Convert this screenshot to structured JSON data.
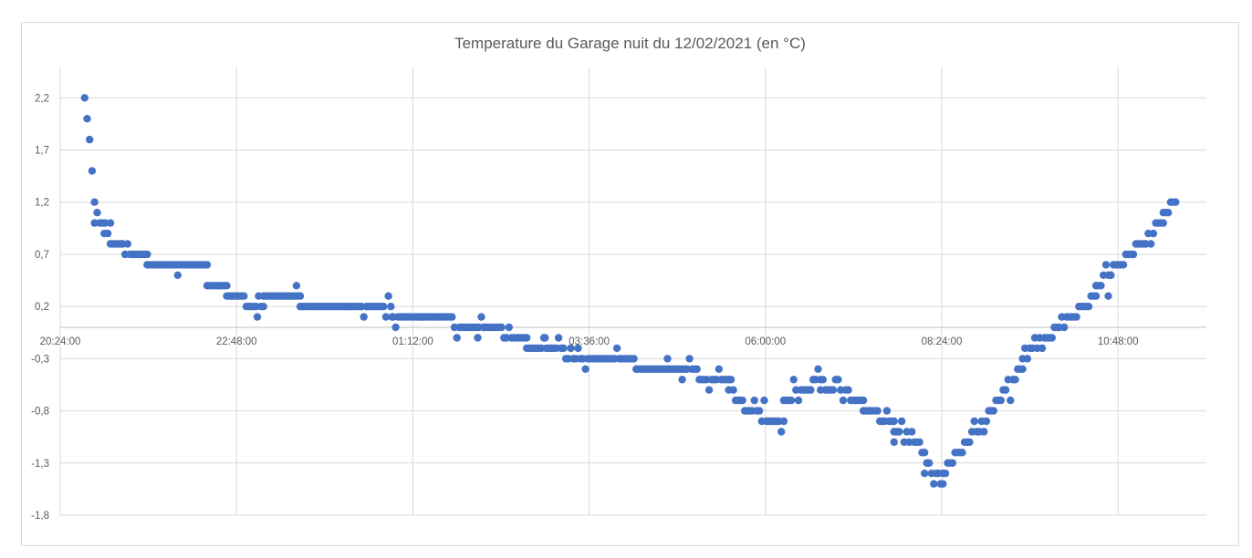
{
  "chart_data": {
    "type": "scatter",
    "title": "Temperature du Garage nuit du 12/02/2021 (en °C)",
    "xlabel": "",
    "ylabel": "",
    "x_unit": "time (hours since 20:24:00)",
    "xlim": [
      "20:24:00",
      "13:12:00"
    ],
    "ylim": [
      -1.8,
      2.5
    ],
    "x_tick_labels": [
      "20:24:00",
      "22:48:00",
      "01:12:00",
      "03:36:00",
      "06:00:00",
      "08:24:00",
      "10:48:00"
    ],
    "y_tick_labels": [
      "2,2",
      "1,7",
      "1,2",
      "0,7",
      "0,2",
      "-0,3",
      "-0,8",
      "-1,3",
      "-1,8"
    ],
    "y_tick_values": [
      2.2,
      1.7,
      1.2,
      0.7,
      0.2,
      -0.3,
      -0.8,
      -1.3,
      -1.8
    ],
    "grid": true,
    "legend": "none",
    "series_color": "#4472c4",
    "segments": [
      {
        "start": "20:44",
        "end": "20:52",
        "from": 2.2,
        "to": 1.2
      },
      {
        "start": "20:52",
        "end": "21:05",
        "from": 1.1,
        "to": 0.9
      },
      {
        "start": "21:05",
        "end": "21:35",
        "from": 0.8,
        "to": 0.7
      },
      {
        "start": "21:35",
        "end": "22:24",
        "from": 0.6,
        "to": 0.6
      },
      {
        "start": "22:24",
        "end": "22:40",
        "from": 0.4,
        "to": 0.4
      },
      {
        "start": "22:40",
        "end": "23:10",
        "from": 0.3,
        "to": 0.2
      },
      {
        "start": "23:10",
        "end": "23:40",
        "from": 0.3,
        "to": 0.3
      },
      {
        "start": "23:40",
        "end": "00:30",
        "from": 0.2,
        "to": 0.2
      },
      {
        "start": "00:30",
        "end": "01:20",
        "from": 0.2,
        "to": 0.1
      },
      {
        "start": "01:20",
        "end": "02:10",
        "from": 0.1,
        "to": 0.0
      },
      {
        "start": "02:10",
        "end": "02:45",
        "from": 0.0,
        "to": -0.1
      },
      {
        "start": "02:45",
        "end": "03:45",
        "from": -0.2,
        "to": -0.3
      },
      {
        "start": "03:45",
        "end": "04:40",
        "from": -0.3,
        "to": -0.4
      },
      {
        "start": "04:40",
        "end": "05:30",
        "from": -0.4,
        "to": -0.5
      },
      {
        "start": "05:30",
        "end": "05:45",
        "from": -0.6,
        "to": -0.8
      },
      {
        "start": "05:45",
        "end": "06:15",
        "from": -0.8,
        "to": -0.9
      },
      {
        "start": "06:15",
        "end": "06:45",
        "from": -0.7,
        "to": -0.5
      },
      {
        "start": "06:45",
        "end": "07:20",
        "from": -0.6,
        "to": -0.7
      },
      {
        "start": "07:20",
        "end": "07:45",
        "from": -0.8,
        "to": -0.9
      },
      {
        "start": "07:45",
        "end": "08:10",
        "from": -1.0,
        "to": -1.2
      },
      {
        "start": "08:10",
        "end": "08:25",
        "from": -1.3,
        "to": -1.5
      },
      {
        "start": "08:25",
        "end": "09:30",
        "from": -1.4,
        "to": -0.4
      },
      {
        "start": "09:30",
        "end": "10:30",
        "from": -0.3,
        "to": 0.3
      },
      {
        "start": "10:30",
        "end": "11:25",
        "from": 0.4,
        "to": 1.0
      },
      {
        "start": "11:25",
        "end": "11:35",
        "from": 1.1,
        "to": 1.2
      }
    ],
    "outliers": [
      {
        "x": "21:00",
        "y": 0.9
      },
      {
        "x": "22:00",
        "y": 0.5
      },
      {
        "x": "23:05",
        "y": 0.1
      },
      {
        "x": "23:37",
        "y": 0.4
      },
      {
        "x": "00:55",
        "y": 0.1
      },
      {
        "x": "02:05",
        "y": -0.1
      },
      {
        "x": "03:00",
        "y": -0.1
      },
      {
        "x": "04:40",
        "y": -0.3
      },
      {
        "x": "04:52",
        "y": -0.5
      },
      {
        "x": "06:02",
        "y": -0.9
      },
      {
        "x": "07:45",
        "y": -1.1
      },
      {
        "x": "10:40",
        "y": 0.3
      },
      {
        "x": "10:42",
        "y": 0.5
      }
    ]
  }
}
